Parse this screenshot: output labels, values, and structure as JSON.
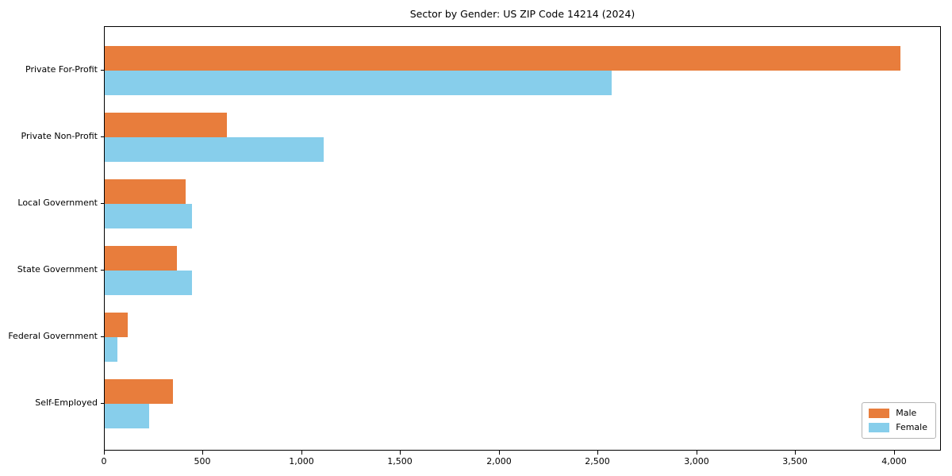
{
  "chart_data": {
    "type": "bar",
    "orientation": "horizontal",
    "title": "Sector by Gender: US ZIP Code 14214 (2024)",
    "categories": [
      "Private For-Profit",
      "Private Non-Profit",
      "Local Government",
      "State Government",
      "Federal Government",
      "Self-Employed"
    ],
    "series": [
      {
        "name": "Male",
        "color": "#e87d3c",
        "values": [
          4030,
          620,
          410,
          365,
          115,
          345
        ]
      },
      {
        "name": "Female",
        "color": "#87ceeb",
        "values": [
          2565,
          1110,
          440,
          440,
          65,
          225
        ]
      }
    ],
    "xlabel": "",
    "ylabel": "",
    "xlim": [
      0,
      4230
    ],
    "xticks": [
      0,
      500,
      1000,
      1500,
      2000,
      2500,
      3000,
      3500,
      4000
    ],
    "xtick_labels": [
      "0",
      "500",
      "1,000",
      "1,500",
      "2,000",
      "2,500",
      "3,000",
      "3,500",
      "4,000"
    ],
    "legend_position": "lower right",
    "grid": false,
    "axis_color": "#000000",
    "background_color": "#ffffff"
  }
}
